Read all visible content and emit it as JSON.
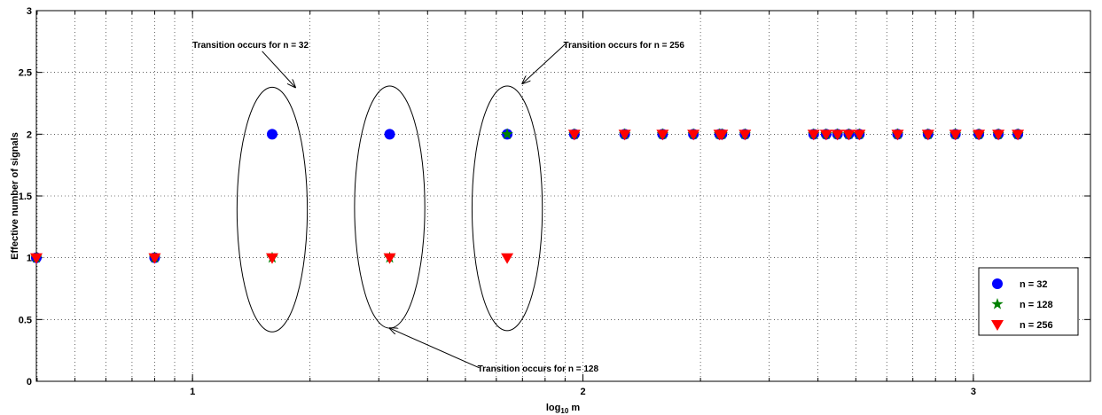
{
  "chart_data": {
    "type": "scatter",
    "xlabel": "log",
    "xlabel_sub": "10",
    "xlabel_suffix": " m",
    "ylabel": "Effective number of signals",
    "xlim": [
      0.6,
      3.3
    ],
    "ylim": [
      0,
      3
    ],
    "xscale": "linear",
    "grid": "dotted, with minor x gridlines at log10 spacing",
    "x_tick_values": [
      1,
      2,
      3
    ],
    "x_tick_labels": [
      "1",
      "2",
      "3"
    ],
    "y_tick_values": [
      0,
      0.5,
      1,
      1.5,
      2,
      2.5,
      3
    ],
    "y_tick_labels": [
      "0",
      "0.5",
      "1",
      "1.5",
      "2",
      "2.5",
      "3"
    ],
    "legend_position": "right, lower-middle",
    "series": [
      {
        "name": "n = 32",
        "marker": "circle",
        "color": "#0000ff",
        "x": [
          0.6,
          0.903,
          1.204,
          1.505,
          1.806,
          1.978,
          2.107,
          2.204,
          2.283,
          2.35,
          2.356,
          2.415,
          2.591,
          2.623,
          2.652,
          2.681,
          2.708,
          2.806,
          2.884,
          2.954,
          3.014,
          3.064,
          3.114
        ],
        "y": [
          1,
          1,
          2,
          2,
          2,
          2,
          2,
          2,
          2,
          2,
          2,
          2,
          2,
          2,
          2,
          2,
          2,
          2,
          2,
          2,
          2,
          2,
          2
        ]
      },
      {
        "name": "n = 128",
        "marker": "star",
        "color": "#008000",
        "x": [
          0.6,
          0.903,
          1.204,
          1.505,
          1.806,
          1.978,
          2.107,
          2.204,
          2.283,
          2.35,
          2.356,
          2.415,
          2.591,
          2.623,
          2.652,
          2.681,
          2.708,
          2.806,
          2.884,
          2.954,
          3.014,
          3.064,
          3.114
        ],
        "y": [
          1,
          1,
          1,
          1,
          2,
          2,
          2,
          2,
          2,
          2,
          2,
          2,
          2,
          2,
          2,
          2,
          2,
          2,
          2,
          2,
          2,
          2,
          2
        ]
      },
      {
        "name": "n = 256",
        "marker": "triangle-down",
        "color": "#ff0000",
        "x": [
          0.6,
          0.903,
          1.204,
          1.505,
          1.806,
          1.978,
          2.107,
          2.204,
          2.283,
          2.35,
          2.356,
          2.415,
          2.591,
          2.623,
          2.652,
          2.681,
          2.708,
          2.806,
          2.884,
          2.954,
          3.014,
          3.064,
          3.114
        ],
        "y": [
          1,
          1,
          1,
          1,
          1,
          2,
          2,
          2,
          2,
          2,
          2,
          2,
          2,
          2,
          2,
          2,
          2,
          2,
          2,
          2,
          2,
          2,
          2
        ]
      }
    ],
    "ellipses": [
      {
        "cx": 1.204,
        "cy": 1.39,
        "rx": 0.09,
        "ry": 0.99
      },
      {
        "cx": 1.505,
        "cy": 1.41,
        "rx": 0.09,
        "ry": 0.98
      },
      {
        "cx": 1.806,
        "cy": 1.4,
        "rx": 0.09,
        "ry": 0.99
      }
    ],
    "annotations": [
      {
        "text": "Transition occurs for n = 32",
        "x": 1.0,
        "y": 2.7,
        "arrow_to": [
          1.263,
          2.38
        ]
      },
      {
        "text": "Transition occurs for n = 256",
        "x": 1.95,
        "y": 2.7,
        "arrow_to": [
          1.845,
          2.41
        ]
      },
      {
        "text": "Transition occurs for n = 128",
        "x": 1.73,
        "y": 0.08,
        "arrow_to": [
          1.505,
          0.43
        ]
      }
    ]
  }
}
